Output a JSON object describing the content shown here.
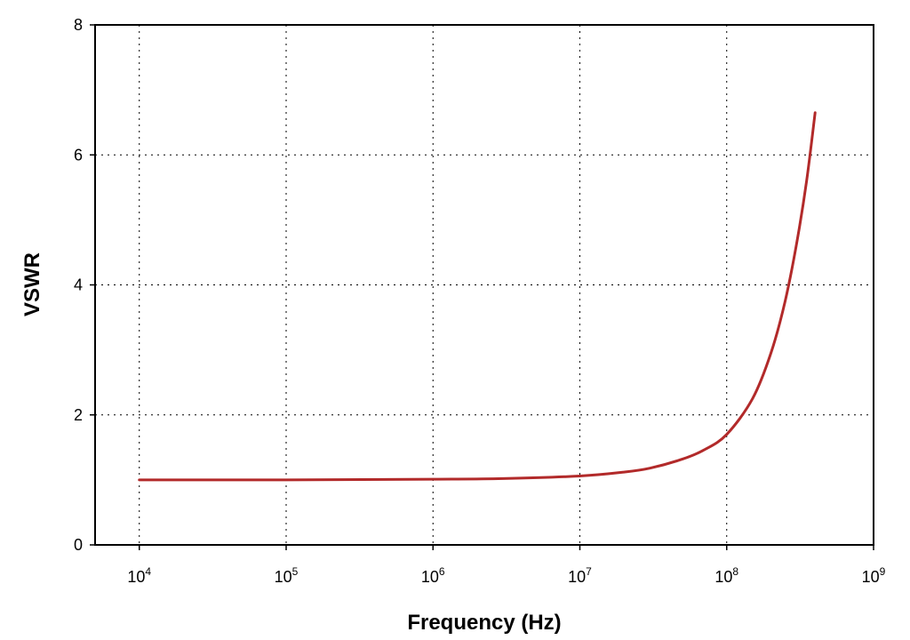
{
  "chart_data": {
    "type": "line",
    "title": "",
    "xlabel": "Frequency (Hz)",
    "ylabel": "VSWR",
    "xscale": "log",
    "xlim": [
      5000,
      1000000000
    ],
    "ylim": [
      0,
      8
    ],
    "grid": true,
    "x_ticks": [
      {
        "value": 10000,
        "base": "10",
        "exp": "4"
      },
      {
        "value": 100000,
        "base": "10",
        "exp": "5"
      },
      {
        "value": 1000000,
        "base": "10",
        "exp": "6"
      },
      {
        "value": 10000000,
        "base": "10",
        "exp": "7"
      },
      {
        "value": 100000000,
        "base": "10",
        "exp": "8"
      },
      {
        "value": 1000000000,
        "base": "10",
        "exp": "9"
      }
    ],
    "y_ticks": [
      {
        "value": 0,
        "label": "0"
      },
      {
        "value": 2,
        "label": "2"
      },
      {
        "value": 4,
        "label": "4"
      },
      {
        "value": 6,
        "label": "6"
      },
      {
        "value": 8,
        "label": "8"
      }
    ],
    "series": [
      {
        "color": "#b22a2a",
        "x": [
          10000,
          100000,
          1000000,
          3000000,
          10000000,
          20000000,
          30000000,
          50000000,
          70000000,
          100000000,
          150000000,
          200000000,
          250000000,
          300000000,
          350000000,
          400000000
        ],
        "y": [
          1.0,
          1.0,
          1.01,
          1.02,
          1.06,
          1.12,
          1.18,
          1.32,
          1.46,
          1.7,
          2.25,
          2.95,
          3.75,
          4.65,
          5.6,
          6.65
        ]
      }
    ]
  }
}
